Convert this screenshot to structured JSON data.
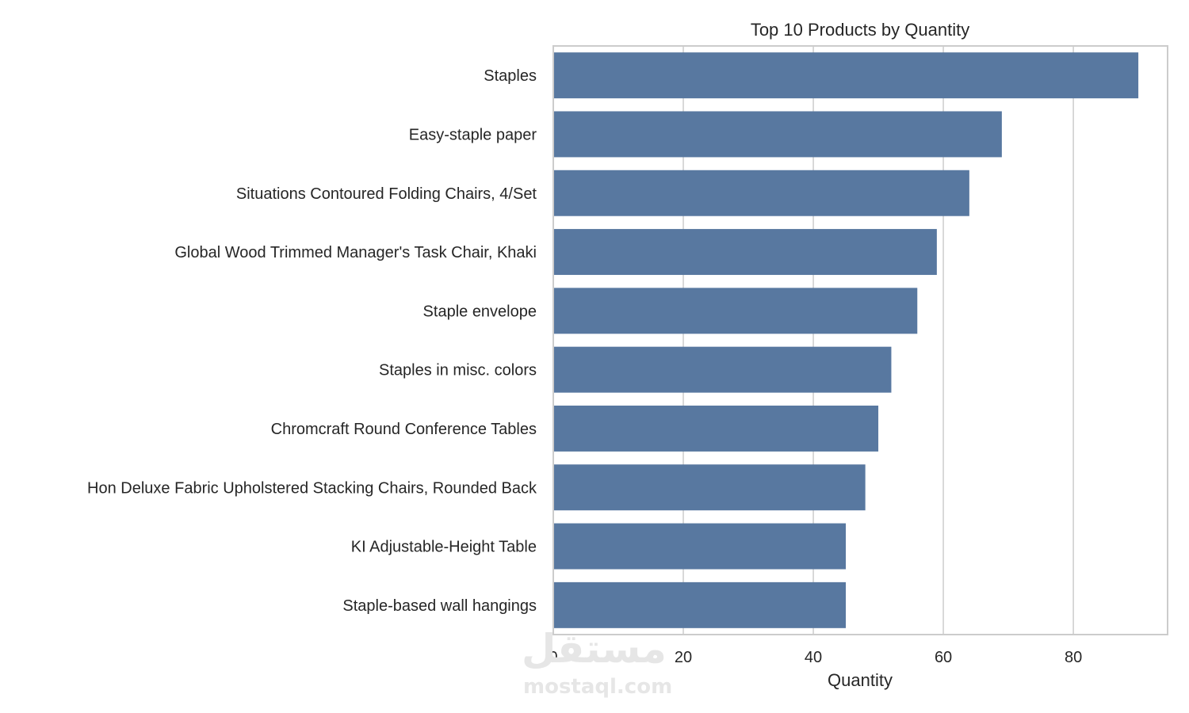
{
  "chart_data": {
    "type": "bar",
    "orientation": "horizontal",
    "title": "Top 10 Products by Quantity",
    "xlabel": "Quantity",
    "ylabel": "",
    "xlim": [
      0,
      94.5
    ],
    "xticks": [
      0,
      20,
      40,
      60,
      80
    ],
    "grid": true,
    "bar_color": "#5878a0",
    "categories": [
      "Staples",
      "Easy-staple paper",
      "Situations Contoured Folding Chairs, 4/Set",
      "Global Wood Trimmed Manager's Task Chair, Khaki",
      "Staple envelope",
      "Staples in misc. colors",
      "Chromcraft Round Conference Tables",
      "Hon Deluxe Fabric Upholstered Stacking Chairs, Rounded Back",
      "KI Adjustable-Height Table",
      "Staple-based wall hangings"
    ],
    "values": [
      90,
      69,
      64,
      59,
      56,
      52,
      50,
      48,
      45,
      45
    ]
  },
  "watermark": {
    "arabic": "مستقل",
    "latin": "mostaql.com"
  }
}
